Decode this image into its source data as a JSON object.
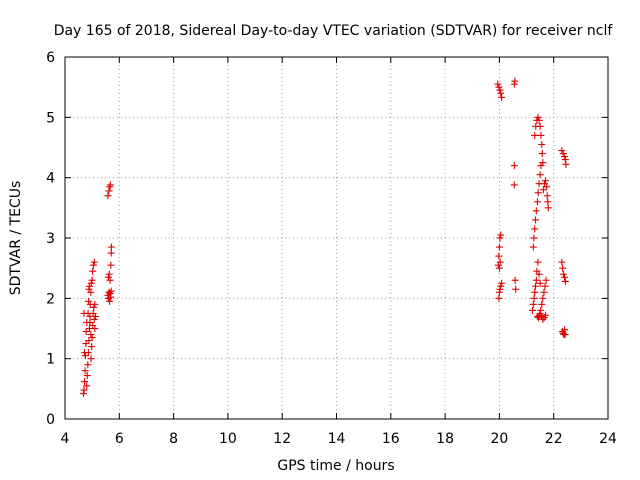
{
  "chart_data": {
    "type": "scatter",
    "title": "Day 165 of 2018, Sidereal Day-to-day VTEC variation (SDTVAR) for receiver nclf",
    "xlabel": "GPS time / hours",
    "ylabel": "SDTVAR / TECUs",
    "xlim": [
      4,
      24
    ],
    "ylim": [
      0,
      6
    ],
    "xticks": [
      "4",
      "6",
      "8",
      "10",
      "12",
      "14",
      "16",
      "18",
      "20",
      "22",
      "24"
    ],
    "yticks": [
      "0",
      "1",
      "2",
      "3",
      "4",
      "5",
      "6"
    ],
    "grid": true,
    "marker": "+",
    "color": "#e00000",
    "series": [
      {
        "name": "SDTVAR",
        "points": [
          [
            4.68,
            0.42
          ],
          [
            4.7,
            0.48
          ],
          [
            4.72,
            0.62
          ],
          [
            4.74,
            0.8
          ],
          [
            4.75,
            1.05
          ],
          [
            4.77,
            1.25
          ],
          [
            4.78,
            1.45
          ],
          [
            4.8,
            1.6
          ],
          [
            4.72,
            1.1
          ],
          [
            4.7,
            1.75
          ],
          [
            4.8,
            0.55
          ],
          [
            4.82,
            0.72
          ],
          [
            4.84,
            0.9
          ],
          [
            4.86,
            1.1
          ],
          [
            4.88,
            1.3
          ],
          [
            4.9,
            1.5
          ],
          [
            4.92,
            1.7
          ],
          [
            4.93,
            1.9
          ],
          [
            4.95,
            2.1
          ],
          [
            4.97,
            2.25
          ],
          [
            4.85,
            1.75
          ],
          [
            4.87,
            1.95
          ],
          [
            4.88,
            2.15
          ],
          [
            4.9,
            2.2
          ],
          [
            4.92,
            1.6
          ],
          [
            4.95,
            1.4
          ],
          [
            4.98,
            1.2
          ],
          [
            5.0,
            1.35
          ],
          [
            5.02,
            1.55
          ],
          [
            5.04,
            1.75
          ],
          [
            5.0,
            2.3
          ],
          [
            5.02,
            2.45
          ],
          [
            5.05,
            2.55
          ],
          [
            5.08,
            2.6
          ],
          [
            5.06,
            1.85
          ],
          [
            5.08,
            1.65
          ],
          [
            5.1,
            1.5
          ],
          [
            5.12,
            1.7
          ],
          [
            5.1,
            1.9
          ],
          [
            4.96,
            1.0
          ],
          [
            5.58,
            3.7
          ],
          [
            5.62,
            3.78
          ],
          [
            5.65,
            3.85
          ],
          [
            5.67,
            3.88
          ],
          [
            5.58,
            2.05
          ],
          [
            5.6,
            2.0
          ],
          [
            5.62,
            2.1
          ],
          [
            5.64,
            1.95
          ],
          [
            5.66,
            2.08
          ],
          [
            5.68,
            2.02
          ],
          [
            5.7,
            2.12
          ],
          [
            5.6,
            2.35
          ],
          [
            5.63,
            2.4
          ],
          [
            5.66,
            2.3
          ],
          [
            5.69,
            2.55
          ],
          [
            5.7,
            2.75
          ],
          [
            5.71,
            2.85
          ],
          [
            19.94,
            5.55
          ],
          [
            19.98,
            5.5
          ],
          [
            20.02,
            5.45
          ],
          [
            20.05,
            5.4
          ],
          [
            20.08,
            5.33
          ],
          [
            20.55,
            5.55
          ],
          [
            20.57,
            5.6
          ],
          [
            19.98,
            2.7
          ],
          [
            20.0,
            2.85
          ],
          [
            20.02,
            3.0
          ],
          [
            20.05,
            3.05
          ],
          [
            19.96,
            2.55
          ],
          [
            20.0,
            2.5
          ],
          [
            20.03,
            2.6
          ],
          [
            19.98,
            2.0
          ],
          [
            20.0,
            2.1
          ],
          [
            20.02,
            2.15
          ],
          [
            20.05,
            2.2
          ],
          [
            20.08,
            2.25
          ],
          [
            20.55,
            4.2
          ],
          [
            20.55,
            3.88
          ],
          [
            20.58,
            2.3
          ],
          [
            20.6,
            2.15
          ],
          [
            21.22,
            1.8
          ],
          [
            21.25,
            1.9
          ],
          [
            21.28,
            2.0
          ],
          [
            21.3,
            2.1
          ],
          [
            21.33,
            2.2
          ],
          [
            21.36,
            2.3
          ],
          [
            21.25,
            2.85
          ],
          [
            21.27,
            3.0
          ],
          [
            21.3,
            3.15
          ],
          [
            21.33,
            3.3
          ],
          [
            21.36,
            3.45
          ],
          [
            21.4,
            3.6
          ],
          [
            21.43,
            3.75
          ],
          [
            21.46,
            3.9
          ],
          [
            21.5,
            4.05
          ],
          [
            21.53,
            4.2
          ],
          [
            21.3,
            4.7
          ],
          [
            21.34,
            4.85
          ],
          [
            21.38,
            4.95
          ],
          [
            21.42,
            5.0
          ],
          [
            21.46,
            4.95
          ],
          [
            21.5,
            4.85
          ],
          [
            21.53,
            4.7
          ],
          [
            21.56,
            4.55
          ],
          [
            21.58,
            4.4
          ],
          [
            21.6,
            4.25
          ],
          [
            21.4,
            1.7
          ],
          [
            21.44,
            1.68
          ],
          [
            21.48,
            1.72
          ],
          [
            21.52,
            1.8
          ],
          [
            21.56,
            1.9
          ],
          [
            21.6,
            2.0
          ],
          [
            21.64,
            2.1
          ],
          [
            21.68,
            2.2
          ],
          [
            21.72,
            2.3
          ],
          [
            21.5,
            1.75
          ],
          [
            21.55,
            1.7
          ],
          [
            21.6,
            1.65
          ],
          [
            21.65,
            1.68
          ],
          [
            21.7,
            1.72
          ],
          [
            21.62,
            3.8
          ],
          [
            21.66,
            3.9
          ],
          [
            21.7,
            3.95
          ],
          [
            21.74,
            3.85
          ],
          [
            21.76,
            3.7
          ],
          [
            21.78,
            3.6
          ],
          [
            21.8,
            3.5
          ],
          [
            21.38,
            2.45
          ],
          [
            21.42,
            2.6
          ],
          [
            21.46,
            2.4
          ],
          [
            21.5,
            2.25
          ],
          [
            22.3,
            4.45
          ],
          [
            22.35,
            4.4
          ],
          [
            22.4,
            4.35
          ],
          [
            22.43,
            4.3
          ],
          [
            22.45,
            4.22
          ],
          [
            22.3,
            2.6
          ],
          [
            22.33,
            2.5
          ],
          [
            22.36,
            2.4
          ],
          [
            22.4,
            2.35
          ],
          [
            22.43,
            2.28
          ],
          [
            22.32,
            1.45
          ],
          [
            22.35,
            1.42
          ],
          [
            22.38,
            1.4
          ],
          [
            22.4,
            1.48
          ],
          [
            22.42,
            1.4
          ]
        ]
      }
    ]
  }
}
